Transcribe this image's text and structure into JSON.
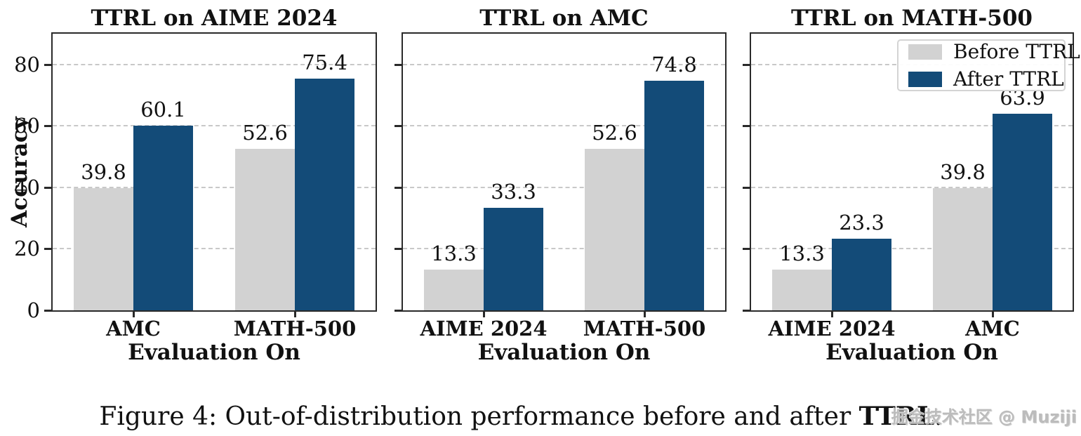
{
  "figure": {
    "caption": {
      "prefix": "Figure 4: Out-of-distribution performance before and after ",
      "bold": "TTRL",
      "suffix": "."
    },
    "watermark": "掘金技术社区 @ Muziji"
  },
  "colors": {
    "before": "#d2d2d2",
    "after": "#134b78",
    "grid": "#c8c8c8",
    "spine": "#2a2a2a",
    "text": "#111111"
  },
  "legend": {
    "position": "upper right",
    "items": [
      {
        "label": "Before TTRL",
        "color_key": "before"
      },
      {
        "label": "After TTRL",
        "color_key": "after"
      }
    ]
  },
  "chart_data": [
    {
      "type": "bar",
      "title": "TTRL on AIME 2024",
      "xlabel": "Evaluation On",
      "ylabel": "Accuracy",
      "ylim": [
        0,
        90
      ],
      "yticks": [
        0,
        20,
        40,
        60,
        80
      ],
      "grid": true,
      "show_ytick_labels": true,
      "show_ylabel": true,
      "legend_visible": false,
      "categories": [
        "AMC",
        "MATH-500"
      ],
      "series": [
        {
          "name": "Before TTRL",
          "values": [
            39.8,
            52.6
          ]
        },
        {
          "name": "After TTRL",
          "values": [
            60.1,
            75.4
          ]
        }
      ]
    },
    {
      "type": "bar",
      "title": "TTRL on AMC",
      "xlabel": "Evaluation On",
      "ylabel": "",
      "ylim": [
        0,
        90
      ],
      "yticks": [
        0,
        20,
        40,
        60,
        80
      ],
      "grid": true,
      "show_ytick_labels": false,
      "show_ylabel": false,
      "legend_visible": false,
      "categories": [
        "AIME 2024",
        "MATH-500"
      ],
      "series": [
        {
          "name": "Before TTRL",
          "values": [
            13.3,
            52.6
          ]
        },
        {
          "name": "After TTRL",
          "values": [
            33.3,
            74.8
          ]
        }
      ]
    },
    {
      "type": "bar",
      "title": "TTRL on MATH-500",
      "xlabel": "Evaluation On",
      "ylabel": "",
      "ylim": [
        0,
        90
      ],
      "yticks": [
        0,
        20,
        40,
        60,
        80
      ],
      "grid": true,
      "show_ytick_labels": false,
      "show_ylabel": false,
      "legend_visible": true,
      "categories": [
        "AIME 2024",
        "AMC"
      ],
      "series": [
        {
          "name": "Before TTRL",
          "values": [
            13.3,
            39.8
          ]
        },
        {
          "name": "After TTRL",
          "values": [
            23.3,
            63.9
          ]
        }
      ]
    }
  ]
}
